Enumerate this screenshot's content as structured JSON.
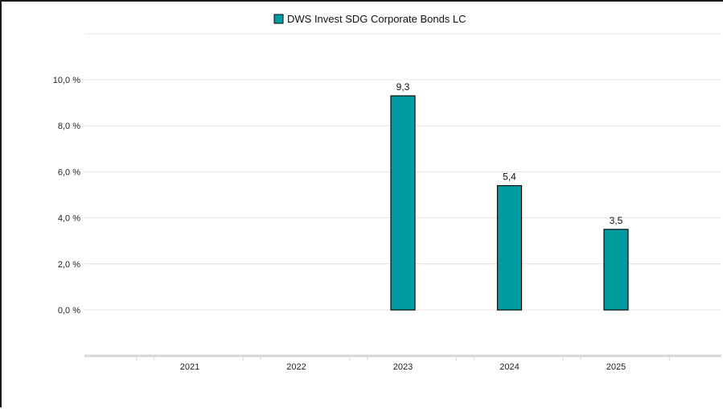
{
  "chart_data": {
    "type": "bar",
    "categories": [
      "2021",
      "2022",
      "2023",
      "2024",
      "2025"
    ],
    "series": [
      {
        "name": "DWS Invest SDG Corporate Bonds LC",
        "values": [
          null,
          null,
          9.3,
          5.4,
          3.5
        ],
        "labels": [
          "",
          "",
          "9,3",
          "5,4",
          "3,5"
        ],
        "color": "#009ca0"
      }
    ],
    "y_ticks": [
      0,
      2,
      4,
      6,
      8,
      10
    ],
    "y_tick_labels": [
      "0,0 %",
      "2,0 %",
      "4,0 %",
      "6,0 %",
      "8,0 %",
      "10,0 %"
    ],
    "ylim": [
      -2,
      12
    ],
    "grid": true,
    "legend_position": "top-center",
    "title": "",
    "xlabel": "",
    "ylabel": ""
  },
  "colors": {
    "bar_fill": "#009ca0",
    "bar_stroke": "#0b0b0b",
    "grid": "#e4e4e4",
    "axis": "#d6d6d6"
  }
}
